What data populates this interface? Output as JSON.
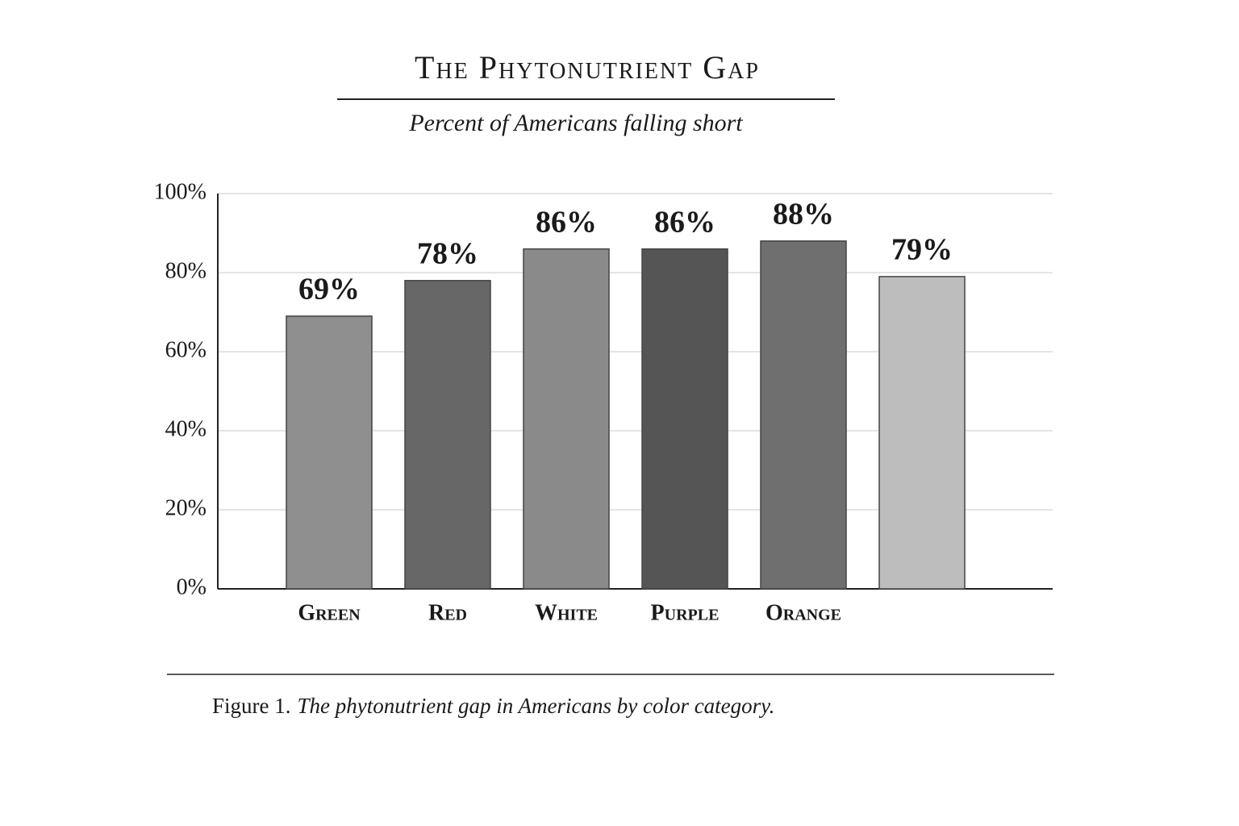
{
  "chart_data": {
    "type": "bar",
    "title": "The Phytonutrient Gap",
    "subtitle": "Percent of Americans falling short",
    "categories": [
      "Green",
      "Red",
      "White",
      "Purple",
      "Orange",
      null
    ],
    "values": [
      69,
      78,
      86,
      86,
      88,
      79
    ],
    "value_labels": [
      "69%",
      "78%",
      "86%",
      "86%",
      "88%",
      "79%"
    ],
    "colors": [
      "#8f8f8f",
      "#676767",
      "#8a8a8a",
      "#555555",
      "#6f6f6f",
      "#bdbdbd"
    ],
    "ylim": [
      0,
      100
    ],
    "yticks": [
      {
        "value": 0,
        "label": "0%"
      },
      {
        "value": 20,
        "label": "20%"
      },
      {
        "value": 40,
        "label": "40%"
      },
      {
        "value": 60,
        "label": "60%"
      },
      {
        "value": 80,
        "label": "80%"
      },
      {
        "value": 100,
        "label": "100%"
      }
    ],
    "grid": true,
    "caption_label": "Figure 1.",
    "caption": "The phytonutrient gap in Americans by color category."
  }
}
